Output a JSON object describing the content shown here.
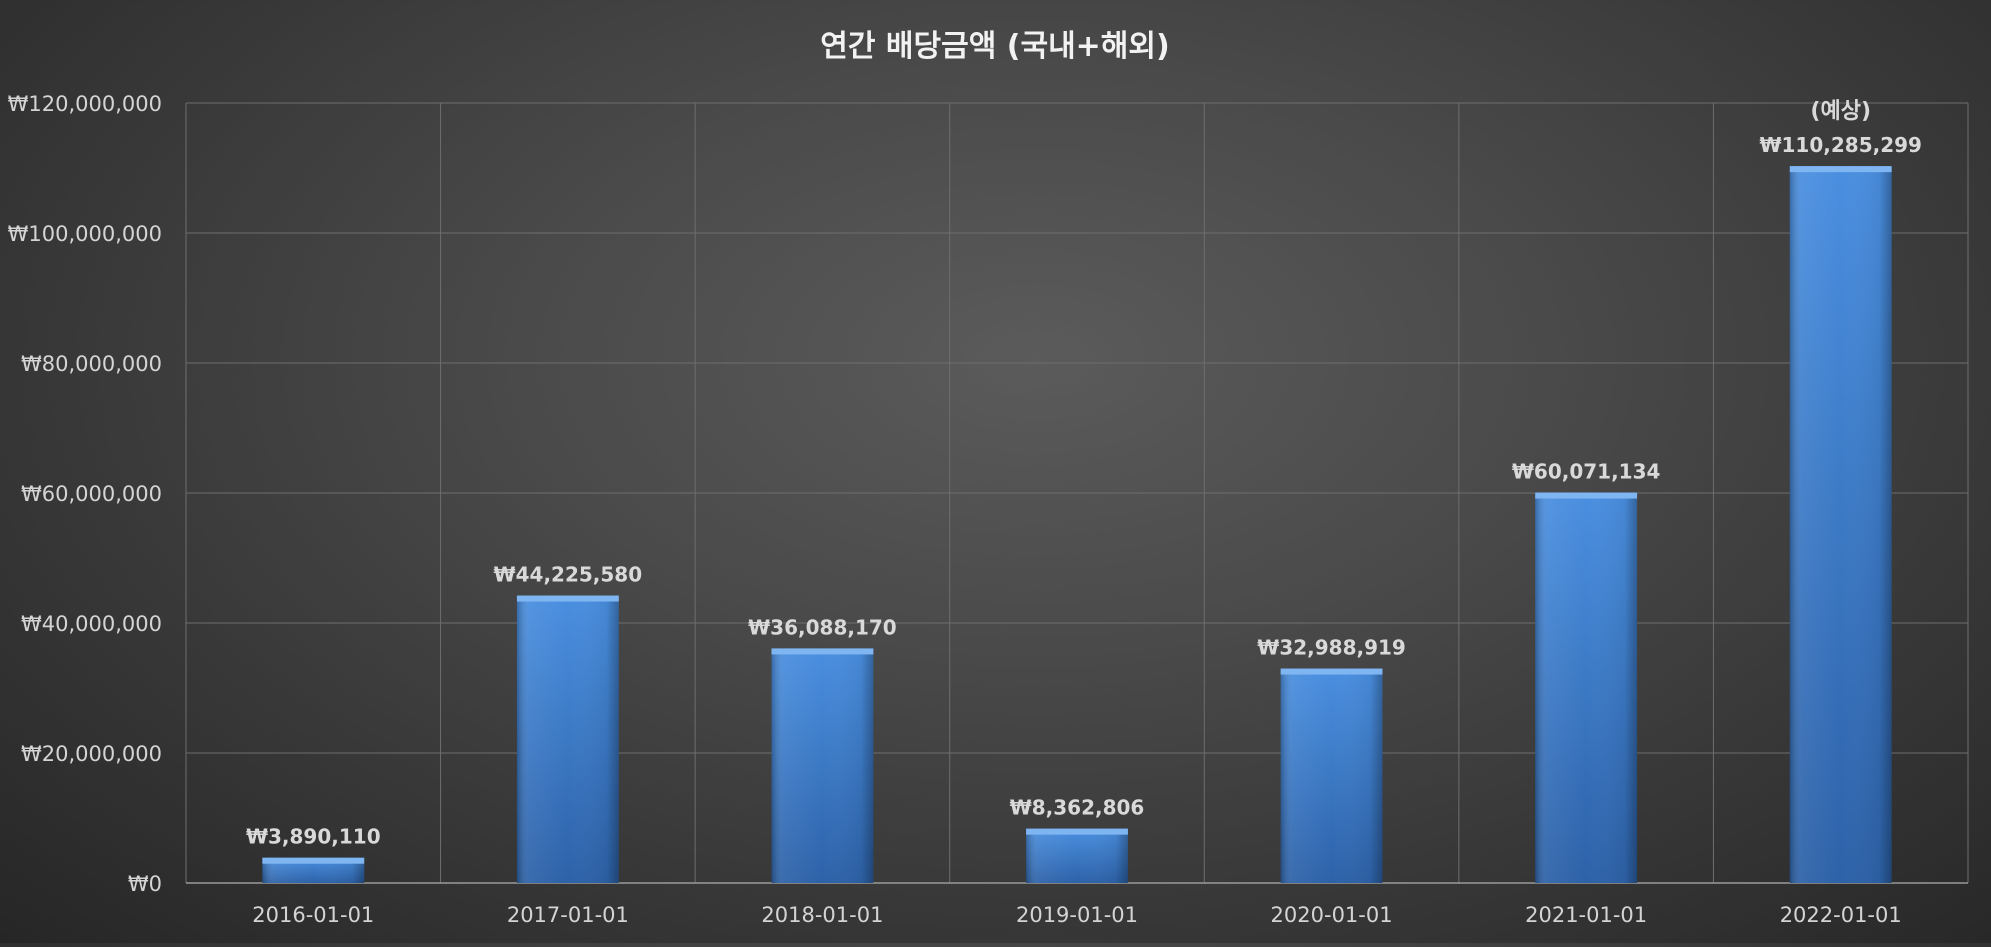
{
  "chart_data": {
    "type": "bar",
    "title": "연간 배당금액 (국내+해외)",
    "xlabel": "",
    "ylabel": "",
    "categories": [
      "2016-01-01",
      "2017-01-01",
      "2018-01-01",
      "2019-01-01",
      "2020-01-01",
      "2021-01-01",
      "2022-01-01"
    ],
    "values": [
      3890110,
      44225580,
      36088170,
      8362806,
      32988919,
      60071134,
      110285299
    ],
    "data_labels": [
      "₩3,890,110",
      "₩44,225,580",
      "₩36,088,170",
      "₩8,362,806",
      "₩32,988,919",
      "₩60,071,134",
      "₩110,285,299"
    ],
    "y_tick_values": [
      0,
      20000000,
      40000000,
      60000000,
      80000000,
      100000000,
      120000000
    ],
    "y_tick_labels": [
      "₩0",
      "₩20,000,000",
      "₩40,000,000",
      "₩60,000,000",
      "₩80,000,000",
      "₩100,000,000",
      "₩120,000,000"
    ],
    "ylim": [
      0,
      120000000
    ],
    "grid": true,
    "legend": "none",
    "annotation": {
      "category": "2022-01-01",
      "text": "(예상)"
    },
    "colors": {
      "bar_top": "#4a8fe0",
      "bar_bottom": "#2d62a8",
      "bar_cap": "#7fb6f2",
      "grid": "#6e6e6e",
      "axis": "#9a9a9a"
    }
  }
}
